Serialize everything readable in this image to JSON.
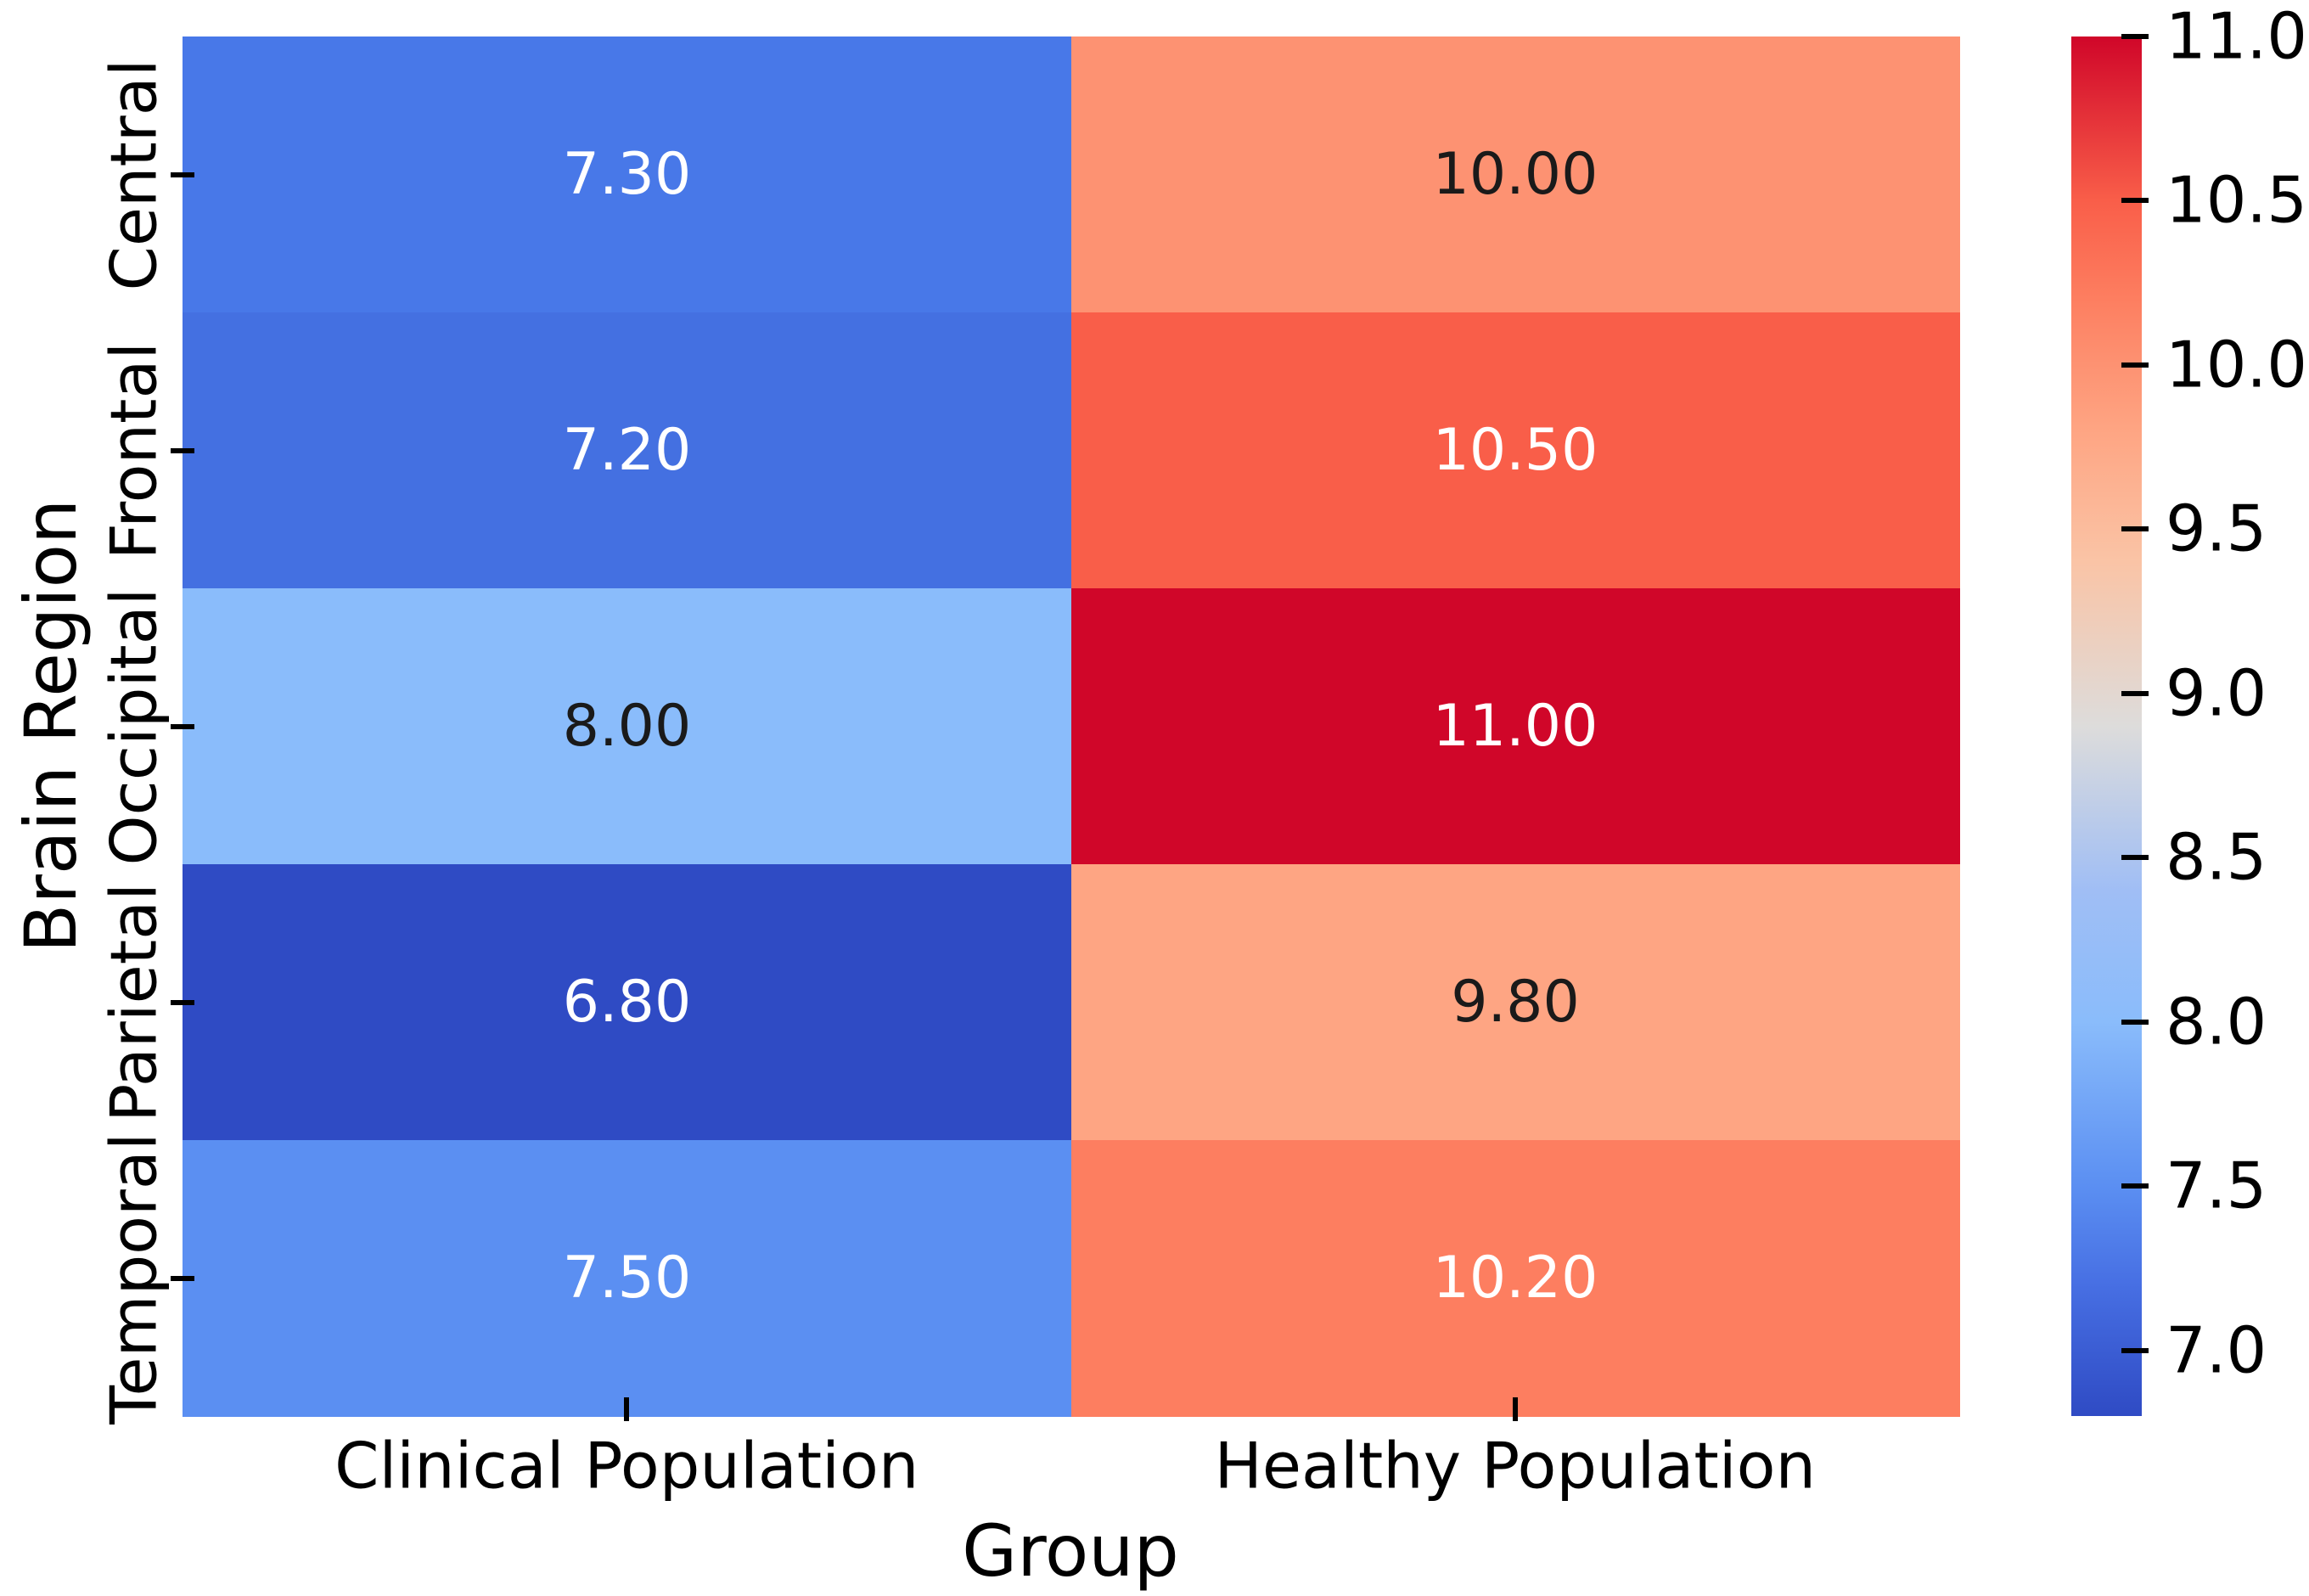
{
  "chart_data": {
    "type": "heatmap",
    "title": "",
    "xlabel": "Group",
    "ylabel": "Brain Region",
    "columns": [
      "Clinical Population",
      "Healthy Population"
    ],
    "rows": [
      "Central",
      "Frontal",
      "Occipital",
      "Parietal",
      "Temporal"
    ],
    "values": [
      [
        7.3,
        10.0
      ],
      [
        7.2,
        10.5
      ],
      [
        8.0,
        11.0
      ],
      [
        6.8,
        9.8
      ],
      [
        7.5,
        10.2
      ]
    ],
    "cell_labels": [
      [
        "7.30",
        "10.00"
      ],
      [
        "7.20",
        "10.50"
      ],
      [
        "8.00",
        "11.00"
      ],
      [
        "6.80",
        "9.80"
      ],
      [
        "7.50",
        "10.20"
      ]
    ],
    "cell_colors": [
      [
        "#4878E8",
        "#FD9272"
      ],
      [
        "#4470E1",
        "#F95E49"
      ],
      [
        "#8ABCFB",
        "#D00629"
      ],
      [
        "#2F4BC4",
        "#FEA583"
      ],
      [
        "#5B8FF2",
        "#FD7E60"
      ]
    ],
    "cell_text_colors": [
      [
        "#FFFFFF",
        "#1A1A1A"
      ],
      [
        "#FFFFFF",
        "#FFFFFF"
      ],
      [
        "#1A1A1A",
        "#FFFFFF"
      ],
      [
        "#FFFFFF",
        "#1A1A1A"
      ],
      [
        "#FFFFFF",
        "#FFFFFF"
      ]
    ],
    "colormap": "coolwarm",
    "vmin": 6.8,
    "vmax": 11.0,
    "grid": false,
    "legend_position": "right-colorbar",
    "background": "#FFFFFF",
    "text_color": "#000000",
    "colorbar": {
      "tick_values": [
        11.0,
        10.5,
        10.0,
        9.5,
        9.0,
        8.5,
        8.0,
        7.5,
        7.0
      ],
      "tick_labels": [
        "11.0",
        "10.5",
        "10.0",
        "9.5",
        "9.0",
        "8.5",
        "8.0",
        "7.5",
        "7.0"
      ],
      "gradient_stops": [
        {
          "pos": 0.0,
          "color": "#D00629"
        },
        {
          "pos": 0.119,
          "color": "#F95E49"
        },
        {
          "pos": 0.19,
          "color": "#FD7E60"
        },
        {
          "pos": 0.238,
          "color": "#FD9272"
        },
        {
          "pos": 0.286,
          "color": "#FEA583"
        },
        {
          "pos": 0.381,
          "color": "#FAC4A6"
        },
        {
          "pos": 0.5,
          "color": "#DDDCDB"
        },
        {
          "pos": 0.619,
          "color": "#A0BEF5"
        },
        {
          "pos": 0.714,
          "color": "#8ABCFB"
        },
        {
          "pos": 0.833,
          "color": "#5B8FF2"
        },
        {
          "pos": 0.905,
          "color": "#476FE3"
        },
        {
          "pos": 1.0,
          "color": "#2F4BC4"
        }
      ]
    }
  }
}
